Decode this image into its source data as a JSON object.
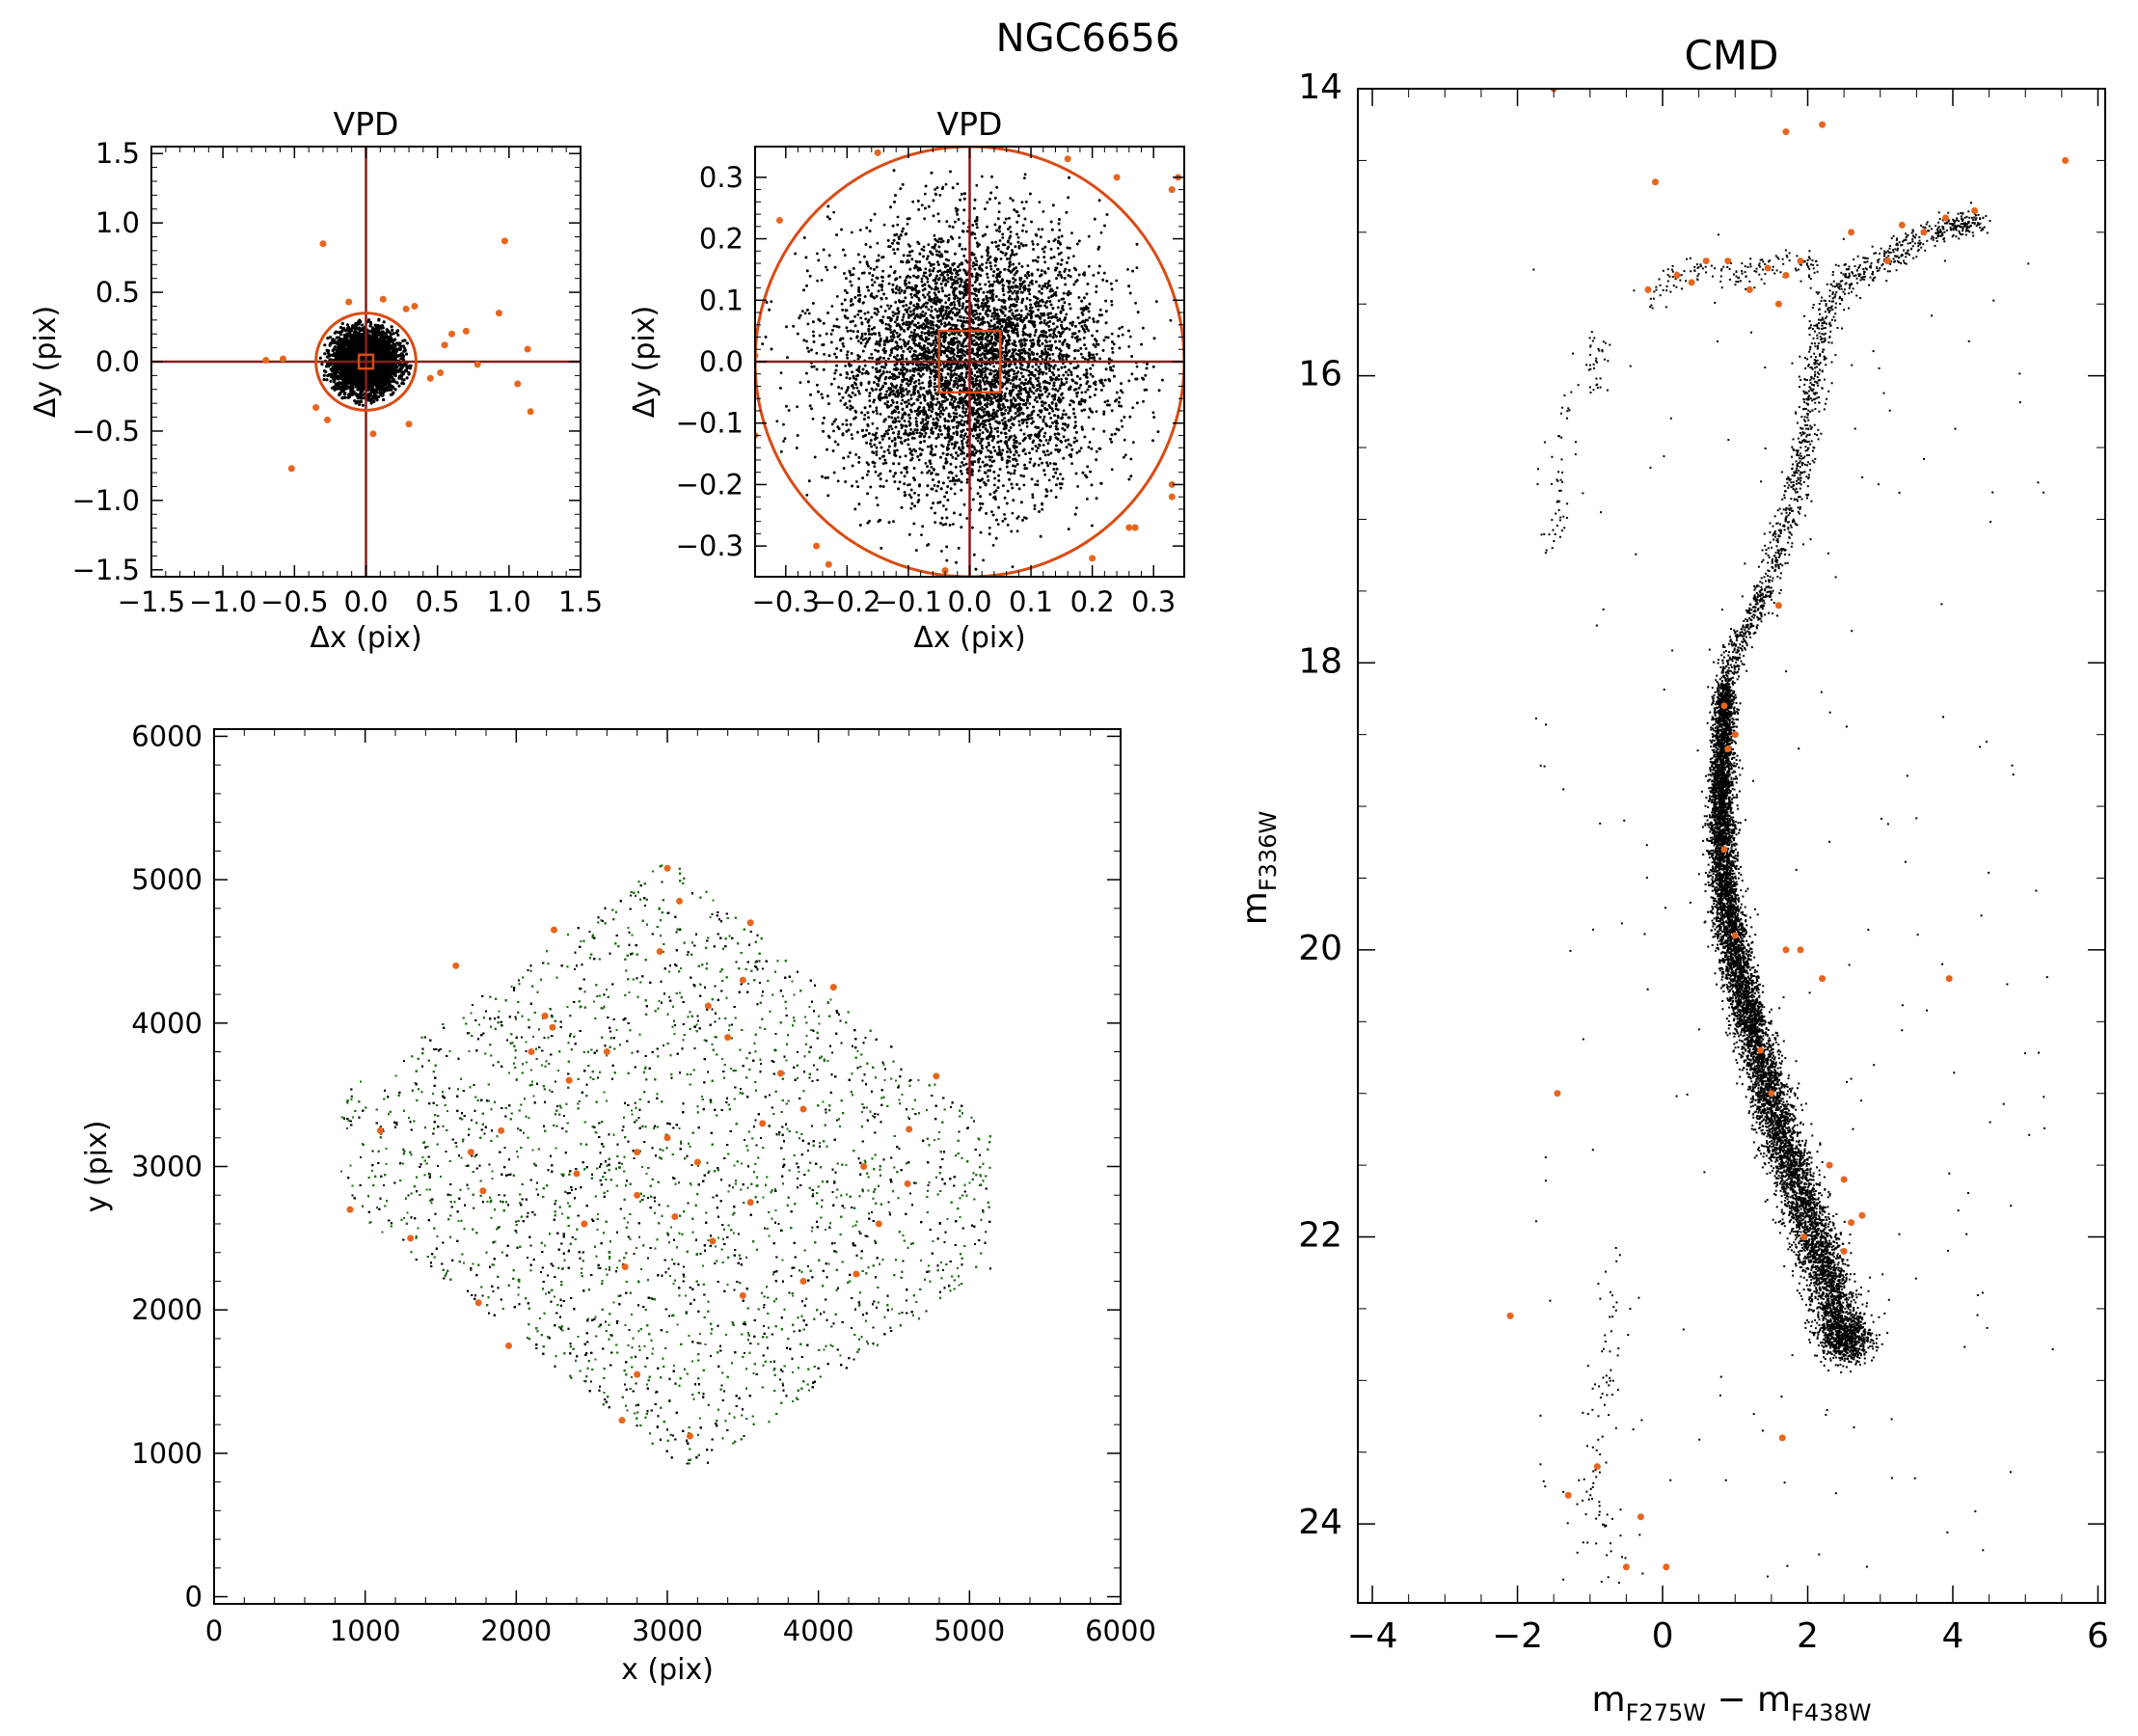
{
  "figure": {
    "title": "NGC6656"
  },
  "colors": {
    "member_points": "#000000",
    "rejected_points": "#e8651e",
    "field_points": "#1f6b14",
    "axis_lines": "#8b1a1a",
    "selection_shapes": "#d94b15"
  },
  "chart_data": [
    {
      "id": "vpd_full",
      "type": "scatter",
      "title": "VPD",
      "xlabel": "Δx (pix)",
      "ylabel": "Δy (pix)",
      "xlim": [
        -1.5,
        1.5
      ],
      "ylim": [
        -1.55,
        1.55
      ],
      "xticks": [
        -1.5,
        -1.0,
        -0.5,
        0.0,
        0.5,
        1.0,
        1.5
      ],
      "yticks": [
        -1.5,
        -1.0,
        -0.5,
        0.0,
        0.5,
        1.0,
        1.5
      ],
      "xtick_labels": [
        "−1.5",
        "−1.0",
        "−0.5",
        "0.0",
        "0.5",
        "1.0",
        "1.5"
      ],
      "ytick_labels": [
        "−1.5",
        "−1.0",
        "−0.5",
        "0.0",
        "0.5",
        "1.0",
        "1.5"
      ],
      "selection_circle_radius": 0.35,
      "selection_box_halfwidth": 0.05,
      "members": {
        "distribution": "gaussian",
        "center": [
          0,
          0
        ],
        "sigma": 0.11,
        "radius_cut": 0.32
      },
      "rejected": [
        [
          -0.3,
          0.85
        ],
        [
          0.97,
          0.87
        ],
        [
          0.93,
          0.35
        ],
        [
          -0.52,
          -0.77
        ],
        [
          -0.58,
          0.02
        ],
        [
          -0.7,
          0.01
        ],
        [
          1.06,
          -0.16
        ],
        [
          1.15,
          -0.36
        ],
        [
          1.13,
          0.09
        ],
        [
          0.78,
          -0.02
        ],
        [
          0.52,
          -0.08
        ],
        [
          0.6,
          0.2
        ],
        [
          0.45,
          -0.12
        ],
        [
          0.05,
          -0.52
        ],
        [
          0.3,
          -0.45
        ],
        [
          0.28,
          0.38
        ],
        [
          -0.12,
          0.43
        ],
        [
          0.55,
          0.12
        ],
        [
          -0.35,
          -0.33
        ],
        [
          0.34,
          0.4
        ],
        [
          -0.27,
          -0.42
        ],
        [
          0.12,
          0.45
        ],
        [
          0.7,
          0.22
        ]
      ]
    },
    {
      "id": "vpd_zoom",
      "type": "scatter",
      "title": "VPD",
      "xlabel": "Δx (pix)",
      "ylabel": "Δy (pix)",
      "xlim": [
        -0.35,
        0.35
      ],
      "ylim": [
        -0.35,
        0.35
      ],
      "xticks": [
        -0.3,
        -0.2,
        -0.1,
        0.0,
        0.1,
        0.2,
        0.3
      ],
      "yticks": [
        -0.3,
        -0.2,
        -0.1,
        0.0,
        0.1,
        0.2,
        0.3
      ],
      "xtick_labels": [
        "−0.3",
        "−0.2",
        "−0.1",
        "0.0",
        "0.1",
        "0.2",
        "0.3"
      ],
      "ytick_labels": [
        "−0.3",
        "−0.2",
        "−0.1",
        "0.0",
        "0.1",
        "0.2",
        "0.3"
      ],
      "selection_circle_radius": 0.35,
      "selection_box_halfwidth": 0.05,
      "members": {
        "distribution": "gaussian",
        "center": [
          0,
          0
        ],
        "sigma": 0.11,
        "radius_cut": 0.345
      },
      "rejected": [
        [
          -0.31,
          0.23
        ],
        [
          -0.25,
          -0.3
        ],
        [
          -0.23,
          -0.33
        ],
        [
          -0.35,
          0.01
        ],
        [
          0.33,
          -0.2
        ],
        [
          0.34,
          0.3
        ],
        [
          0.27,
          -0.27
        ],
        [
          0.26,
          -0.27
        ],
        [
          0.2,
          -0.32
        ],
        [
          -0.15,
          0.34
        ],
        [
          0.33,
          0.28
        ],
        [
          0.33,
          -0.22
        ],
        [
          -0.35,
          -0.12
        ],
        [
          0.24,
          0.3
        ],
        [
          0.16,
          0.33
        ],
        [
          -0.04,
          -0.34
        ]
      ]
    },
    {
      "id": "xy_map",
      "type": "scatter",
      "title": "",
      "xlabel": "x (pix)",
      "ylabel": "y (pix)",
      "xlim": [
        0,
        6000
      ],
      "ylim": [
        -50,
        6050
      ],
      "xticks": [
        0,
        1000,
        2000,
        3000,
        4000,
        5000,
        6000
      ],
      "yticks": [
        0,
        1000,
        2000,
        3000,
        4000,
        5000,
        6000
      ],
      "xtick_labels": [
        "0",
        "1000",
        "2000",
        "3000",
        "4000",
        "5000",
        "6000"
      ],
      "ytick_labels": [
        "0",
        "1000",
        "2000",
        "3000",
        "4000",
        "5000",
        "6000"
      ],
      "footprint_vertices": [
        [
          3000,
          5150
        ],
        [
          5150,
          3250
        ],
        [
          5150,
          2300
        ],
        [
          3150,
          850
        ],
        [
          800,
          2800
        ],
        [
          820,
          3500
        ]
      ],
      "rejected": [
        [
          3000,
          5080
        ],
        [
          3080,
          4850
        ],
        [
          4780,
          3630
        ],
        [
          4600,
          3260
        ],
        [
          4590,
          2880
        ],
        [
          4400,
          2600
        ],
        [
          4250,
          2250
        ],
        [
          3550,
          2750
        ],
        [
          3630,
          3300
        ],
        [
          3400,
          3900
        ],
        [
          3270,
          4120
        ],
        [
          3200,
          3030
        ],
        [
          3000,
          3200
        ],
        [
          2800,
          3100
        ],
        [
          2800,
          2800
        ],
        [
          2720,
          2300
        ],
        [
          2350,
          3600
        ],
        [
          2240,
          3970
        ],
        [
          2190,
          4050
        ],
        [
          1900,
          3250
        ],
        [
          1780,
          2830
        ],
        [
          1700,
          3100
        ],
        [
          1750,
          2050
        ],
        [
          1950,
          1750
        ],
        [
          2450,
          2600
        ],
        [
          2800,
          1550
        ],
        [
          2700,
          1230
        ],
        [
          3150,
          1120
        ],
        [
          3500,
          2100
        ],
        [
          3900,
          2200
        ],
        [
          4300,
          3000
        ],
        [
          3750,
          3650
        ],
        [
          3300,
          2480
        ],
        [
          900,
          2700
        ],
        [
          1100,
          3250
        ],
        [
          1300,
          2500
        ],
        [
          1600,
          4400
        ],
        [
          2100,
          3800
        ],
        [
          2600,
          3800
        ],
        [
          3500,
          4300
        ],
        [
          4100,
          4250
        ],
        [
          3900,
          3400
        ],
        [
          2250,
          4650
        ],
        [
          2950,
          4500
        ],
        [
          3550,
          4700
        ],
        [
          2400,
          2950
        ],
        [
          3050,
          2650
        ]
      ]
    },
    {
      "id": "cmd",
      "type": "scatter",
      "title": "CMD",
      "xlabel": "mF275W − mF438W",
      "ylabel": "mF336W",
      "xlim": [
        -4.2,
        6.1
      ],
      "ylim": [
        24.55,
        14.0
      ],
      "xticks": [
        -4,
        -2,
        0,
        2,
        4,
        6
      ],
      "yticks": [
        14,
        16,
        18,
        20,
        22,
        24
      ],
      "xtick_labels": [
        "−4",
        "−2",
        "0",
        "2",
        "4",
        "6"
      ],
      "ytick_labels": [
        "14",
        "16",
        "18",
        "20",
        "22",
        "24"
      ],
      "xlabel_parts": {
        "m1": "m",
        "s1": "F275W",
        "sep": "−",
        "m2": "m",
        "s2": "F438W"
      },
      "ylabel_parts": {
        "m": "m",
        "s": "F336W"
      },
      "sequences": {
        "main_sequence_ridge": [
          [
            0.85,
            18.15
          ],
          [
            0.82,
            18.6
          ],
          [
            0.8,
            19.0
          ],
          [
            0.82,
            19.4
          ],
          [
            0.9,
            19.8
          ],
          [
            1.05,
            20.2
          ],
          [
            1.25,
            20.6
          ],
          [
            1.45,
            21.0
          ],
          [
            1.7,
            21.4
          ],
          [
            1.95,
            21.8
          ],
          [
            2.2,
            22.2
          ],
          [
            2.45,
            22.6
          ],
          [
            2.55,
            22.8
          ]
        ],
        "subgiant_branch": [
          [
            0.85,
            18.1
          ],
          [
            1.0,
            17.9
          ],
          [
            1.2,
            17.7
          ],
          [
            1.4,
            17.5
          ],
          [
            1.6,
            17.2
          ],
          [
            1.75,
            16.9
          ],
          [
            1.9,
            16.6
          ],
          [
            2.0,
            16.2
          ],
          [
            2.1,
            15.9
          ],
          [
            2.2,
            15.6
          ],
          [
            2.5,
            15.3
          ],
          [
            3.0,
            15.2
          ],
          [
            3.5,
            15.05
          ],
          [
            4.0,
            14.95
          ],
          [
            4.4,
            14.9
          ]
        ],
        "horizontal_branch": [
          [
            -0.2,
            15.45
          ],
          [
            0.1,
            15.3
          ],
          [
            0.5,
            15.25
          ],
          [
            1.0,
            15.3
          ],
          [
            1.4,
            15.25
          ],
          [
            1.9,
            15.2
          ],
          [
            2.1,
            15.25
          ]
        ],
        "blue_hb_tail": [
          [
            -1.0,
            15.85
          ],
          [
            -0.8,
            15.9
          ],
          [
            -1.3,
            16.2
          ],
          [
            -1.5,
            16.6
          ],
          [
            -1.4,
            17.0
          ],
          [
            -1.6,
            17.1
          ]
        ],
        "white_dwarfs": [
          [
            -0.7,
            22.2
          ],
          [
            -0.75,
            22.7
          ],
          [
            -0.8,
            23.0
          ],
          [
            -0.95,
            23.4
          ],
          [
            -1.0,
            23.8
          ],
          [
            -0.9,
            24.0
          ],
          [
            -0.6,
            24.3
          ]
        ]
      },
      "rejected": [
        [
          -1.5,
          14.0
        ],
        [
          1.7,
          14.3
        ],
        [
          2.2,
          14.25
        ],
        [
          -0.1,
          14.65
        ],
        [
          5.55,
          14.5
        ],
        [
          -0.2,
          15.4
        ],
        [
          0.2,
          15.3
        ],
        [
          0.4,
          15.35
        ],
        [
          0.6,
          15.2
        ],
        [
          0.9,
          15.2
        ],
        [
          1.2,
          15.4
        ],
        [
          1.45,
          15.25
        ],
        [
          1.7,
          15.3
        ],
        [
          1.9,
          15.2
        ],
        [
          2.6,
          15.0
        ],
        [
          3.1,
          15.2
        ],
        [
          3.3,
          14.95
        ],
        [
          3.6,
          15.0
        ],
        [
          3.9,
          14.9
        ],
        [
          4.3,
          14.85
        ],
        [
          1.6,
          15.5
        ],
        [
          0.85,
          18.3
        ],
        [
          0.9,
          18.6
        ],
        [
          0.85,
          19.3
        ],
        [
          1.0,
          19.9
        ],
        [
          1.0,
          18.5
        ],
        [
          1.7,
          20.0
        ],
        [
          1.9,
          20.0
        ],
        [
          2.2,
          20.2
        ],
        [
          3.95,
          20.2
        ],
        [
          1.35,
          20.7
        ],
        [
          1.5,
          21.0
        ],
        [
          2.3,
          21.5
        ],
        [
          2.5,
          21.6
        ],
        [
          2.6,
          21.9
        ],
        [
          2.75,
          21.85
        ],
        [
          1.95,
          22.0
        ],
        [
          2.5,
          22.1
        ],
        [
          -2.1,
          22.55
        ],
        [
          1.65,
          23.4
        ],
        [
          -0.9,
          23.6
        ],
        [
          -1.3,
          23.8
        ],
        [
          -0.3,
          23.95
        ],
        [
          -0.5,
          24.3
        ],
        [
          0.05,
          24.3
        ],
        [
          -1.45,
          21.0
        ],
        [
          1.6,
          17.6
        ]
      ]
    }
  ]
}
